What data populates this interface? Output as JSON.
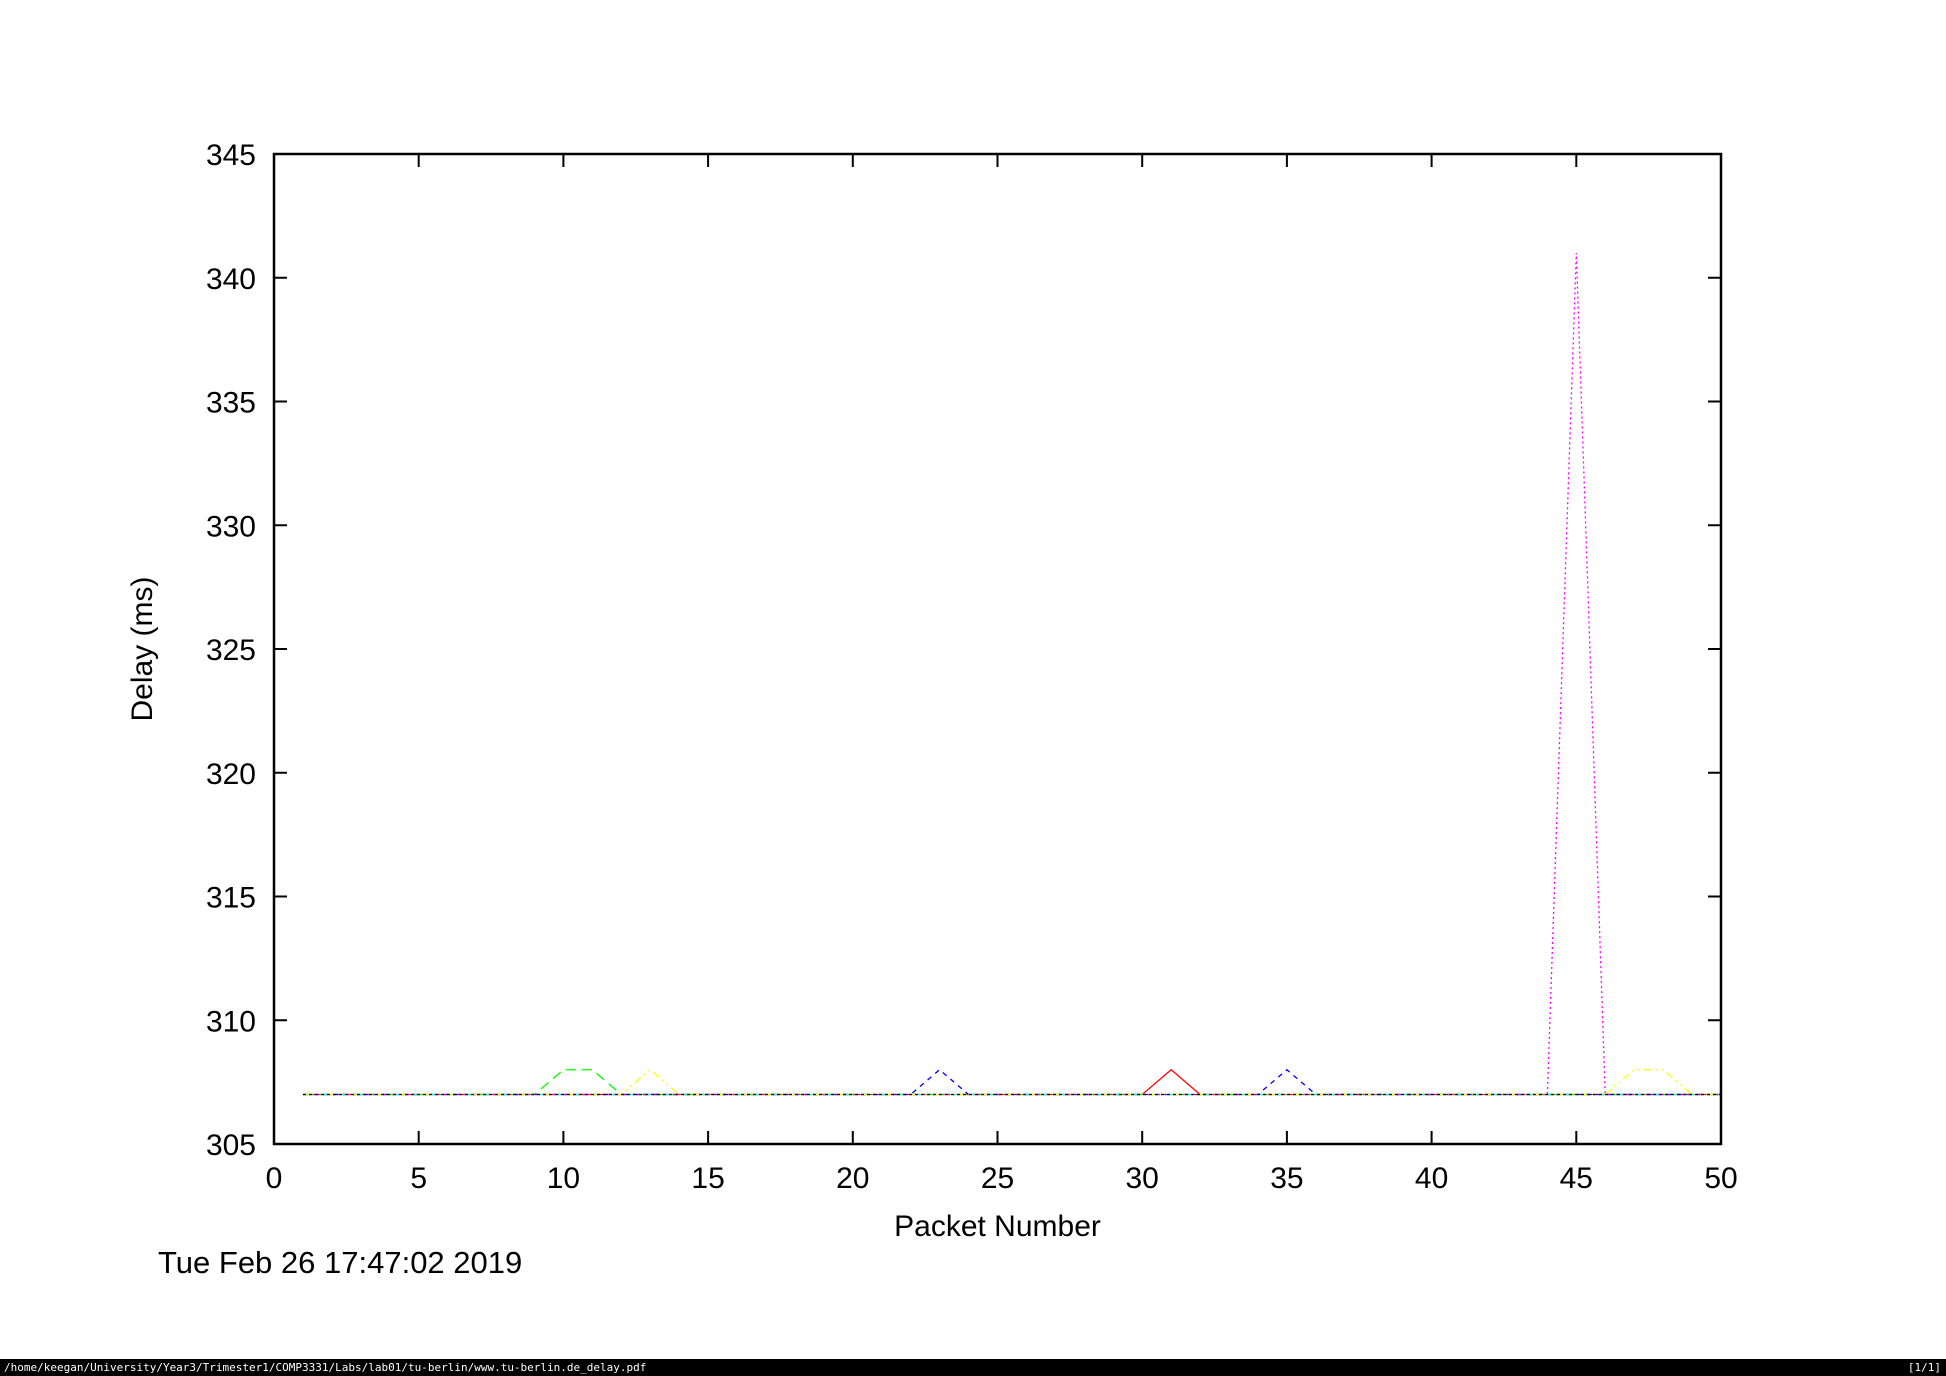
{
  "chart_data": {
    "type": "line",
    "title": "",
    "xlabel": "Packet Number",
    "ylabel": "Delay (ms)",
    "xlim": [
      0,
      50
    ],
    "ylim": [
      305,
      345
    ],
    "xticks": [
      0,
      5,
      10,
      15,
      20,
      25,
      30,
      35,
      40,
      45,
      50
    ],
    "yticks": [
      305,
      310,
      315,
      320,
      325,
      330,
      335,
      340,
      345
    ],
    "grid": false,
    "legend": "none",
    "x": [
      1,
      2,
      3,
      4,
      5,
      6,
      7,
      8,
      9,
      10,
      11,
      12,
      13,
      14,
      15,
      16,
      17,
      18,
      19,
      20,
      21,
      22,
      23,
      24,
      25,
      26,
      27,
      28,
      29,
      30,
      31,
      32,
      33,
      34,
      35,
      36,
      37,
      38,
      39,
      40,
      41,
      42,
      43,
      44,
      45,
      46,
      47,
      48,
      49,
      50
    ],
    "series": [
      {
        "color": "#ff0000",
        "dash": "solid",
        "values": [
          307,
          307,
          307,
          307,
          307,
          307,
          307,
          307,
          307,
          307,
          307,
          307,
          307,
          307,
          307,
          307,
          307,
          307,
          307,
          307,
          307,
          307,
          307,
          307,
          307,
          307,
          307,
          307,
          307,
          307,
          308,
          307,
          307,
          307,
          307,
          307,
          307,
          307,
          307,
          307,
          307,
          307,
          307,
          307,
          307,
          307,
          307,
          307,
          307,
          307
        ]
      },
      {
        "color": "#00ff00",
        "dash": "dashed",
        "values": [
          307,
          307,
          307,
          307,
          307,
          307,
          307,
          307,
          307,
          308,
          308,
          307,
          307,
          307,
          307,
          307,
          307,
          307,
          307,
          307,
          307,
          307,
          307,
          307,
          307,
          307,
          307,
          307,
          307,
          307,
          307,
          307,
          307,
          307,
          307,
          307,
          307,
          307,
          307,
          307,
          307,
          307,
          307,
          307,
          307,
          307,
          307,
          307,
          307,
          307
        ]
      },
      {
        "color": "#0000ff",
        "dash": "dashed-short",
        "values": [
          307,
          307,
          307,
          307,
          307,
          307,
          307,
          307,
          307,
          307,
          307,
          307,
          307,
          307,
          307,
          307,
          307,
          307,
          307,
          307,
          307,
          307,
          308,
          307,
          307,
          307,
          307,
          307,
          307,
          307,
          307,
          307,
          307,
          307,
          308,
          307,
          307,
          307,
          307,
          307,
          307,
          307,
          307,
          307,
          307,
          307,
          307,
          307,
          307,
          307
        ]
      },
      {
        "color": "#ff00ff",
        "dash": "dotted",
        "values": [
          307,
          307,
          307,
          307,
          307,
          307,
          307,
          307,
          307,
          307,
          307,
          307,
          307,
          307,
          307,
          307,
          307,
          307,
          307,
          307,
          307,
          307,
          307,
          307,
          307,
          307,
          307,
          307,
          307,
          307,
          307,
          307,
          307,
          307,
          307,
          307,
          307,
          307,
          307,
          307,
          307,
          307,
          307,
          307,
          341,
          307,
          307,
          307,
          307,
          307
        ]
      },
      {
        "color": "#00ffff",
        "dash": "dash-dot",
        "values": [
          307,
          307,
          307,
          307,
          307,
          307,
          307,
          307,
          307,
          307,
          307,
          307,
          307,
          307,
          307,
          307,
          307,
          307,
          307,
          307,
          307,
          307,
          307,
          307,
          307,
          307,
          307,
          307,
          307,
          307,
          307,
          307,
          307,
          307,
          307,
          307,
          307,
          307,
          307,
          307,
          307,
          307,
          307,
          307,
          307,
          307,
          307,
          307,
          307,
          307
        ]
      },
      {
        "color": "#ffff00",
        "dash": "dash-dot-dot",
        "values": [
          307,
          307,
          307,
          307,
          307,
          307,
          307,
          307,
          307,
          307,
          307,
          307,
          308,
          307,
          307,
          307,
          307,
          307,
          307,
          307,
          307,
          307,
          307,
          307,
          307,
          307,
          307,
          307,
          307,
          307,
          307,
          307,
          307,
          307,
          307,
          307,
          307,
          307,
          307,
          307,
          307,
          307,
          307,
          307,
          307,
          307,
          308,
          308,
          307,
          307
        ]
      },
      {
        "color": "#000000",
        "dash": "dotted-fine",
        "values": [
          307,
          307,
          307,
          307,
          307,
          307,
          307,
          307,
          307,
          307,
          307,
          307,
          307,
          307,
          307,
          307,
          307,
          307,
          307,
          307,
          307,
          307,
          307,
          307,
          307,
          307,
          307,
          307,
          307,
          307,
          307,
          307,
          307,
          307,
          307,
          307,
          307,
          307,
          307,
          307,
          307,
          307,
          307,
          307,
          307,
          307,
          307,
          307,
          307,
          307
        ]
      }
    ]
  },
  "footer": {
    "timestamp": "Tue Feb 26 17:47:02 2019"
  },
  "status_bar": {
    "path": "/home/keegan/University/Year3/Trimester1/COMP3331/Labs/lab01/tu-berlin/www.tu-berlin.de_delay.pdf",
    "page": "[1/1]"
  }
}
